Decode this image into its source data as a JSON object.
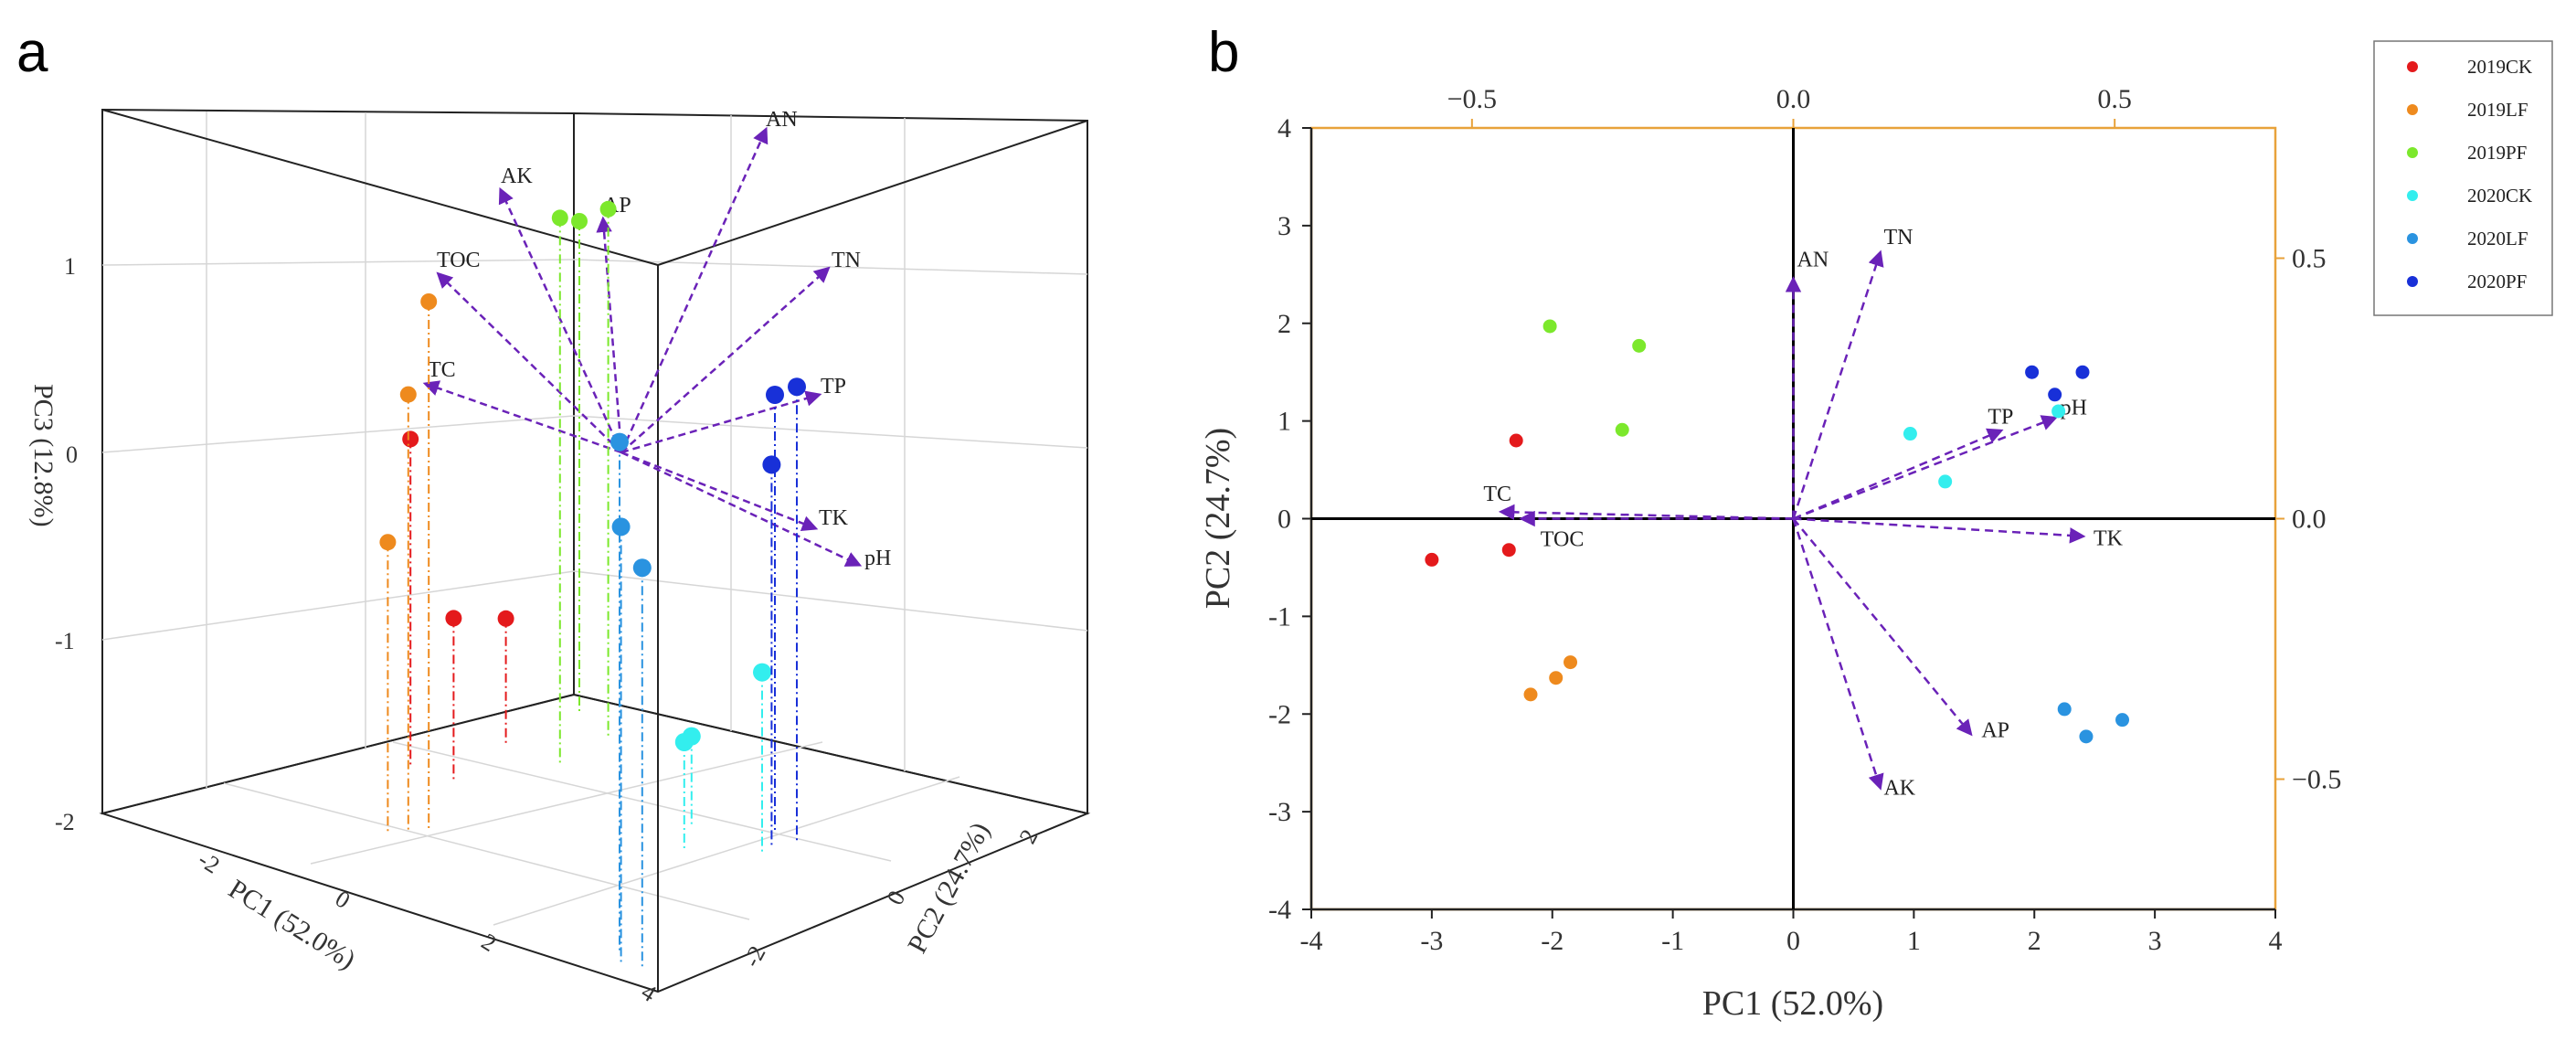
{
  "figure": {
    "panel_a": "a",
    "panel_b": "b"
  },
  "colors": {
    "2019CK": "#e41a1c",
    "2019LF": "#ee8a1e",
    "2019PF": "#7ce82c",
    "2020CK": "#33eeee",
    "2020LF": "#2a93e0",
    "2020PF": "#1830d8",
    "arrow": "#6a22b8",
    "axis_frame_b": "#e8a23a"
  },
  "chart_data": [
    {
      "type": "scatter",
      "name": "3D PCA",
      "dimensions": 3,
      "xlabel": "PC1 (52.0%)",
      "ylabel": "PC2 (24.7%)",
      "zlabel": "PC3 (12.8%)",
      "xlim": [
        -4,
        4
      ],
      "ylim": [
        -4,
        4
      ],
      "zlim": [
        -2,
        1.8
      ],
      "x_ticks": [
        "-2",
        "0",
        "2",
        "4"
      ],
      "y_ticks": [
        "-2",
        "0",
        "2"
      ],
      "z_ticks": [
        "-2",
        "-1",
        "0",
        "1"
      ],
      "series": [
        {
          "name": "2019CK",
          "points": [
            [
              -3.0,
              -0.4,
              -0.2
            ],
            [
              -2.3,
              -0.3,
              -1.1
            ],
            [
              -2.3,
              0.8,
              -1.3
            ]
          ]
        },
        {
          "name": "2019LF",
          "points": [
            [
              -2.0,
              -1.6,
              0.4
            ],
            [
              -2.2,
              -1.8,
              -0.4
            ],
            [
              -1.8,
              -1.4,
              0.9
            ]
          ]
        },
        {
          "name": "2019PF",
          "points": [
            [
              -2.0,
              2.0,
              0.7
            ],
            [
              -1.4,
              0.9,
              1.0
            ],
            [
              -1.3,
              1.8,
              0.9
            ]
          ]
        },
        {
          "name": "2020CK",
          "points": [
            [
              1.0,
              0.9,
              -1.5
            ],
            [
              1.3,
              0.4,
              -1.4
            ],
            [
              2.2,
              1.0,
              -1.0
            ]
          ]
        },
        {
          "name": "2020LF",
          "points": [
            [
              2.2,
              -2.0,
              0.8
            ],
            [
              2.4,
              -2.2,
              0.4
            ],
            [
              2.7,
              -2.1,
              0.2
            ]
          ]
        },
        {
          "name": "2020PF",
          "points": [
            [
              2.0,
              1.5,
              0.4
            ],
            [
              2.2,
              1.2,
              0.1
            ],
            [
              2.4,
              1.5,
              0.5
            ]
          ]
        }
      ],
      "vectors": [
        {
          "name": "AN"
        },
        {
          "name": "AK"
        },
        {
          "name": "AP"
        },
        {
          "name": "TOC"
        },
        {
          "name": "TN"
        },
        {
          "name": "TC"
        },
        {
          "name": "TP"
        },
        {
          "name": "TK"
        },
        {
          "name": "pH"
        }
      ]
    },
    {
      "type": "scatter",
      "name": "PCA biplot",
      "xlabel": "PC1 (52.0%)",
      "ylabel": "PC2 (24.7%)",
      "xlim": [
        -4,
        4
      ],
      "ylim": [
        -4,
        4
      ],
      "x_ticks": [
        "-4",
        "-3",
        "-2",
        "-1",
        "0",
        "1",
        "2",
        "3",
        "4"
      ],
      "y_ticks": [
        "-4",
        "-3",
        "-2",
        "-1",
        "0",
        "1",
        "2",
        "3",
        "4"
      ],
      "loading_xlim": [
        -0.75,
        0.75
      ],
      "loading_ylim": [
        -0.75,
        0.75
      ],
      "top_ticks": [
        -0.5,
        0.0,
        0.5
      ],
      "top_tick_labels": [
        "−0.5",
        "0.0",
        "0.5"
      ],
      "right_ticks": [
        0.5,
        0.0,
        -0.5
      ],
      "right_tick_labels": [
        "0.5",
        "0.0",
        "−0.5"
      ],
      "legend": [
        "2019CK",
        "2019LF",
        "2019PF",
        "2020CK",
        "2020LF",
        "2020PF"
      ],
      "legend_position": "top-right",
      "series": [
        {
          "name": "2019CK",
          "points": [
            [
              -2.3,
              0.8
            ],
            [
              -3.0,
              -0.42
            ],
            [
              -2.36,
              -0.32
            ]
          ]
        },
        {
          "name": "2019LF",
          "points": [
            [
              -1.85,
              -1.47
            ],
            [
              -1.97,
              -1.63
            ],
            [
              -2.18,
              -1.8
            ]
          ]
        },
        {
          "name": "2019PF",
          "points": [
            [
              -2.02,
              1.97
            ],
            [
              -1.28,
              1.77
            ],
            [
              -1.42,
              0.91
            ]
          ]
        },
        {
          "name": "2020CK",
          "points": [
            [
              0.97,
              0.87
            ],
            [
              1.26,
              0.38
            ],
            [
              2.2,
              1.1
            ]
          ]
        },
        {
          "name": "2020LF",
          "points": [
            [
              2.25,
              -1.95
            ],
            [
              2.43,
              -2.23
            ],
            [
              2.73,
              -2.06
            ]
          ]
        },
        {
          "name": "2020PF",
          "points": [
            [
              1.98,
              1.5
            ],
            [
              2.4,
              1.5
            ],
            [
              2.17,
              1.27
            ]
          ]
        }
      ],
      "vectors": [
        {
          "name": "AN",
          "x": 0.0,
          "y": 2.45
        },
        {
          "name": "TN",
          "x": 0.72,
          "y": 2.72
        },
        {
          "name": "TP",
          "x": 1.72,
          "y": 0.9
        },
        {
          "name": "pH",
          "x": 2.17,
          "y": 1.03
        },
        {
          "name": "TC",
          "x": -2.42,
          "y": 0.07
        },
        {
          "name": "TOC",
          "x": -2.25,
          "y": 0.0
        },
        {
          "name": "TK",
          "x": 2.4,
          "y": -0.18
        },
        {
          "name": "AP",
          "x": 1.47,
          "y": -2.2
        },
        {
          "name": "AK",
          "x": 0.72,
          "y": -2.75
        }
      ]
    }
  ]
}
